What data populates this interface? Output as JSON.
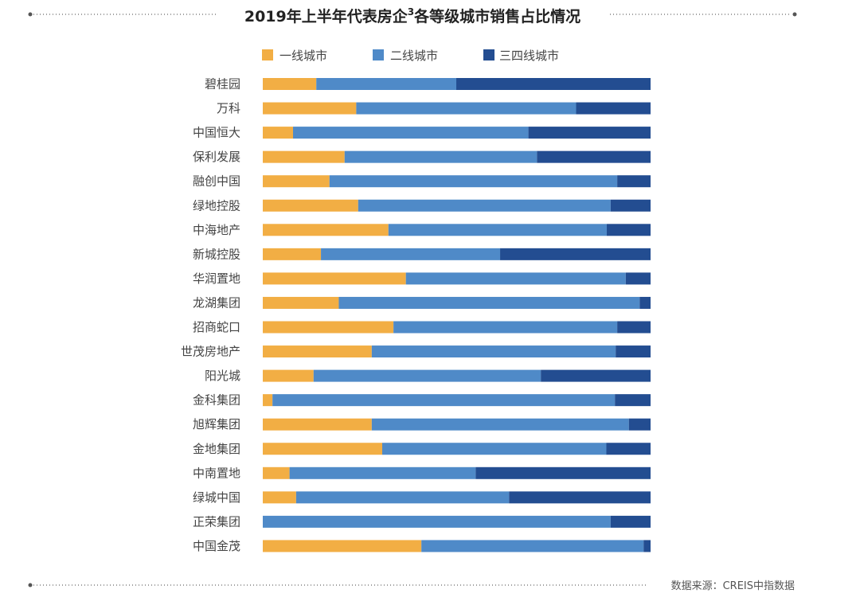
{
  "chart_data": {
    "type": "bar",
    "orientation": "horizontal",
    "stacked": "percent",
    "title": {
      "main": "2019年上半年代表房企",
      "superscript": "3",
      "tail": "各等级城市销售占比情况"
    },
    "source": "数据来源：CREIS中指数据",
    "categories": [
      "碧桂园",
      "万科",
      "中国恒大",
      "保利发展",
      "融创中国",
      "绿地控股",
      "中海地产",
      "新城控股",
      "华润置地",
      "龙湖集团",
      "招商蛇口",
      "世茂房地产",
      "阳光城",
      "金科集团",
      "旭辉集团",
      "金地集团",
      "中南置地",
      "绿城中国",
      "正荣集团",
      "中国金茂"
    ],
    "series": [
      {
        "name": "一线城市",
        "color": "#F2AE44",
        "values": [
          13.8,
          24.1,
          7.8,
          21.1,
          17.2,
          24.6,
          32.4,
          15.0,
          36.9,
          19.6,
          33.7,
          28.1,
          13.1,
          2.5,
          28.1,
          30.8,
          6.9,
          8.6,
          0.0,
          40.9
        ]
      },
      {
        "name": "二线城市",
        "color": "#4F8AC8",
        "values": [
          36.1,
          56.7,
          60.7,
          49.6,
          74.2,
          65.1,
          56.3,
          46.2,
          56.7,
          77.6,
          57.7,
          62.9,
          58.6,
          88.3,
          66.3,
          57.8,
          48.0,
          54.9,
          89.7,
          57.3
        ]
      },
      {
        "name": "三四线城市",
        "color": "#234D91",
        "values": [
          50.1,
          19.2,
          31.5,
          29.3,
          8.6,
          10.3,
          11.3,
          38.8,
          6.4,
          2.8,
          8.6,
          9.0,
          28.3,
          9.2,
          5.6,
          11.4,
          45.1,
          36.5,
          10.3,
          1.8
        ]
      }
    ],
    "xlim": [
      0,
      100
    ],
    "grid": false,
    "legend_position": "top"
  }
}
